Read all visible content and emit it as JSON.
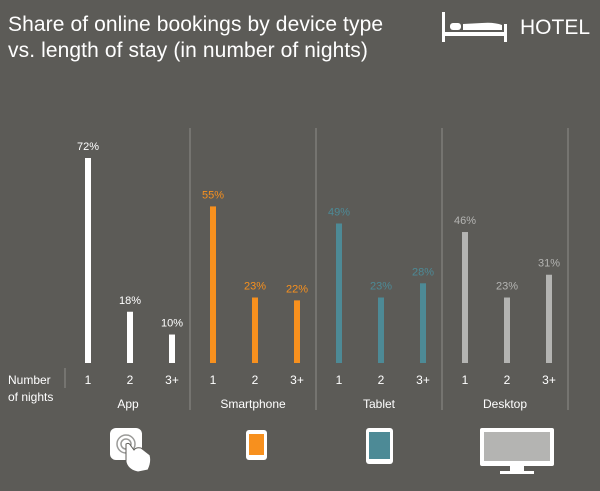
{
  "header": {
    "title_line1": "Share of online bookings by device type",
    "title_line2": "vs. length of stay (in number of nights)",
    "badge_label": "HOTEL",
    "badge_icon": "bed-icon"
  },
  "axis": {
    "row_label_line1": "Number",
    "row_label_line2": "of nights"
  },
  "chart_data": {
    "type": "bar",
    "title": "Share of online bookings by device type vs. length of stay (in number of nights)",
    "xlabel": "Number of nights",
    "ylabel": "",
    "ylim": [
      0,
      80
    ],
    "categories": [
      "1",
      "2",
      "3+"
    ],
    "series": [
      {
        "name": "App",
        "values": [
          72,
          18,
          10
        ],
        "labels": [
          "72%",
          "18%",
          "10%"
        ],
        "color": "#ffffff",
        "icon": "touch-icon"
      },
      {
        "name": "Smartphone",
        "values": [
          55,
          23,
          22
        ],
        "labels": [
          "55%",
          "23%",
          "22%"
        ],
        "color": "#f7901e",
        "icon": "smartphone-icon"
      },
      {
        "name": "Tablet",
        "values": [
          49,
          23,
          28
        ],
        "labels": [
          "49%",
          "23%",
          "28%"
        ],
        "color": "#4d8a96",
        "icon": "tablet-icon"
      },
      {
        "name": "Desktop",
        "values": [
          46,
          23,
          31
        ],
        "labels": [
          "46%",
          "23%",
          "31%"
        ],
        "color": "#b4b4b2",
        "icon": "desktop-icon"
      }
    ],
    "grid": false,
    "legend": "none"
  },
  "colors": {
    "background": "#5c5b57",
    "divider": "#8e8d89",
    "text": "#ffffff"
  }
}
